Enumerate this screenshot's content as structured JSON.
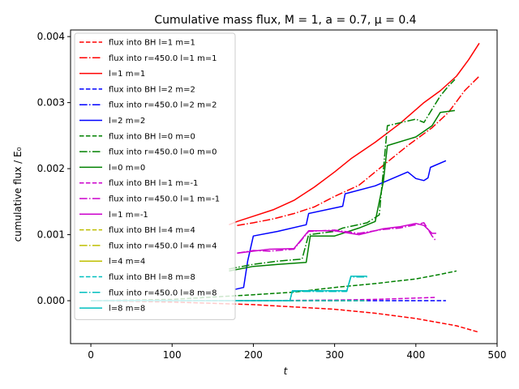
{
  "chart_data": {
    "type": "line",
    "title": "Cumulative mass flux, M = 1, a = 0.7, μ = 0.4",
    "xlabel": "t",
    "ylabel": "cumulative flux / E₀",
    "xlim": [
      -25,
      500
    ],
    "ylim": [
      -0.00065,
      0.0041
    ],
    "xticks": [
      0,
      100,
      200,
      300,
      400,
      500
    ],
    "xtick_labels": [
      "0",
      "100",
      "200",
      "300",
      "400",
      "500"
    ],
    "yticks": [
      0,
      0.001,
      0.002,
      0.003,
      0.004
    ],
    "ytick_labels": [
      "0.000",
      "0.001",
      "0.002",
      "0.003",
      "0.004"
    ],
    "grid": false,
    "legend_position": "upper-left",
    "series": [
      {
        "name": "flux into BH l=1 m=1",
        "color": "#ff0000",
        "style": "dashed",
        "x": [
          0,
          100,
          200,
          300,
          350,
          400,
          450,
          478
        ],
        "y": [
          0,
          -2e-05,
          -6e-05,
          -0.00013,
          -0.00019,
          -0.00027,
          -0.00038,
          -0.00048
        ]
      },
      {
        "name": "flux into r=450.0 l=1 m=1",
        "color": "#ff0000",
        "style": "dashdot",
        "x": [
          180,
          200,
          225,
          250,
          275,
          300,
          330,
          360,
          390,
          420,
          440,
          460,
          478
        ],
        "y": [
          0.00114,
          0.00118,
          0.00124,
          0.00132,
          0.00142,
          0.00158,
          0.00175,
          0.00205,
          0.00235,
          0.00262,
          0.00285,
          0.00318,
          0.0034
        ]
      },
      {
        "name": "l=1 m=1",
        "color": "#ff0000",
        "style": "solid",
        "x": [
          170,
          180,
          200,
          225,
          250,
          275,
          300,
          320,
          350,
          380,
          410,
          430,
          450,
          465,
          478
        ],
        "y": [
          0.00115,
          0.0012,
          0.00128,
          0.00138,
          0.00152,
          0.00172,
          0.00195,
          0.00215,
          0.0024,
          0.00268,
          0.003,
          0.00318,
          0.0034,
          0.00365,
          0.0039
        ]
      },
      {
        "name": "flux into BH l=2 m=2",
        "color": "#0000ff",
        "style": "dashed",
        "x": [
          0,
          100,
          200,
          300,
          400,
          437
        ],
        "y": [
          0,
          0,
          0,
          0,
          0,
          0
        ]
      },
      {
        "name": "flux into r=450.0 l=2 m=2",
        "color": "#0000ff",
        "style": "dashdot",
        "x": [],
        "y": []
      },
      {
        "name": "l=2 m=2",
        "color": "#0000ff",
        "style": "solid",
        "x": [
          177,
          188,
          193,
          200,
          230,
          265,
          268,
          310,
          313,
          350,
          390,
          400,
          410,
          415,
          418,
          437
        ],
        "y": [
          0.00017,
          0.0002,
          0.0006,
          0.00098,
          0.00105,
          0.00115,
          0.00132,
          0.00143,
          0.00162,
          0.00174,
          0.00195,
          0.00185,
          0.00182,
          0.00186,
          0.00202,
          0.00212
        ]
      },
      {
        "name": "flux into BH l=0 m=0",
        "color": "#008000",
        "style": "dashed",
        "x": [
          0,
          100,
          200,
          250,
          300,
          350,
          400,
          430,
          450
        ],
        "y": [
          0,
          2e-05,
          9e-05,
          0.00013,
          0.0002,
          0.00026,
          0.00033,
          0.0004,
          0.00045
        ]
      },
      {
        "name": "flux into r=450.0 l=0 m=0",
        "color": "#008000",
        "style": "dashdot",
        "x": [
          170,
          200,
          230,
          260,
          268,
          300,
          310,
          340,
          355,
          365,
          400,
          410,
          420,
          430,
          440,
          448
        ],
        "y": [
          0.00048,
          0.00055,
          0.0006,
          0.00063,
          0.001,
          0.00105,
          0.0011,
          0.00118,
          0.0013,
          0.00265,
          0.00275,
          0.0027,
          0.0029,
          0.0031,
          0.00325,
          0.00335
        ]
      },
      {
        "name": "l=0 m=0",
        "color": "#008000",
        "style": "solid",
        "x": [
          170,
          200,
          230,
          265,
          270,
          300,
          330,
          350,
          360,
          365,
          400,
          420,
          430,
          448
        ],
        "y": [
          0.00045,
          0.00052,
          0.00055,
          0.00058,
          0.00098,
          0.00098,
          0.0011,
          0.0012,
          0.0018,
          0.00235,
          0.00248,
          0.00265,
          0.00285,
          0.00288
        ]
      },
      {
        "name": "flux into BH l=1 m=-1",
        "color": "#cc00cc",
        "style": "dashed",
        "x": [
          0,
          100,
          200,
          300,
          350,
          400,
          425
        ],
        "y": [
          0,
          0,
          0,
          1e-05,
          2e-05,
          4e-05,
          5e-05
        ]
      },
      {
        "name": "flux into r=450.0 l=1 m=-1",
        "color": "#cc00cc",
        "style": "dashdot",
        "x": [
          180,
          200,
          220,
          250,
          268,
          300,
          330,
          360,
          380,
          400,
          410,
          420,
          425
        ],
        "y": [
          0.00072,
          0.00076,
          0.00075,
          0.00078,
          0.00105,
          0.00107,
          0.00102,
          0.00108,
          0.0011,
          0.00115,
          0.00118,
          0.00098,
          0.0009
        ]
      },
      {
        "name": "l=1 m=-1",
        "color": "#cc00cc",
        "style": "solid",
        "x": [
          180,
          200,
          220,
          250,
          268,
          300,
          330,
          360,
          380,
          400,
          410,
          420,
          425
        ],
        "y": [
          0.00072,
          0.00075,
          0.00078,
          0.00079,
          0.00106,
          0.00106,
          0.001,
          0.00109,
          0.00112,
          0.00117,
          0.00114,
          0.00102,
          0.00102
        ]
      },
      {
        "name": "flux into BH l=4 m=4",
        "color": "#bfbf00",
        "style": "dashed",
        "x": [
          0,
          200,
          340
        ],
        "y": [
          0,
          0,
          0
        ]
      },
      {
        "name": "flux into r=450.0 l=4 m=4",
        "color": "#bfbf00",
        "style": "dashdot",
        "x": [],
        "y": []
      },
      {
        "name": "l=4 m=4",
        "color": "#bfbf00",
        "style": "solid",
        "x": [],
        "y": []
      },
      {
        "name": "flux into BH l=8 m=8",
        "color": "#00bfbf",
        "style": "dashed",
        "x": [
          0,
          200,
          340
        ],
        "y": [
          0,
          0,
          0
        ]
      },
      {
        "name": "flux into r=450.0 l=8 m=8",
        "color": "#00bfbf",
        "style": "dashdot",
        "x": [
          0,
          245,
          248,
          280,
          315,
          320,
          340
        ],
        "y": [
          0,
          0,
          0.00014,
          0.00014,
          0.00014,
          0.00036,
          0.00036
        ]
      },
      {
        "name": "l=8 m=8",
        "color": "#00bfbf",
        "style": "solid",
        "x": [
          0,
          245,
          248,
          280,
          315,
          320,
          340
        ],
        "y": [
          0,
          0,
          0.00015,
          0.00015,
          0.00015,
          0.00037,
          0.00037
        ]
      }
    ]
  }
}
